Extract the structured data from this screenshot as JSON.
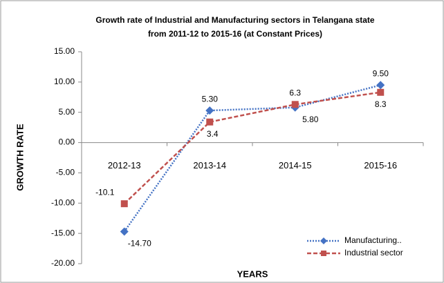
{
  "chart_data": {
    "type": "line",
    "title": [
      "Growth rate of Industrial  and Manufacturing sectors in Telangana state",
      "from 2011-12 to 2015-16 (at Constant Prices)"
    ],
    "x_label": "YEARS",
    "y_label": "GROWTH RATE",
    "categories": [
      "2012-13",
      "2013-14",
      "2014-15",
      "2015-16"
    ],
    "series": [
      {
        "name": "Manufacturing..",
        "color": "#4472c4",
        "values": [
          -14.7,
          5.3,
          5.8,
          9.5
        ],
        "value_labels": [
          "-14.70",
          "5.30",
          "5.80",
          "9.50"
        ]
      },
      {
        "name": "Industrial sector",
        "color": "#c0504d",
        "values": [
          -10.1,
          3.4,
          6.3,
          8.3
        ]
      }
    ],
    "ylim": [
      -20,
      15
    ],
    "yticks": [
      {
        "value": -20,
        "label": "-20.00"
      },
      {
        "value": -15,
        "label": "-15.00"
      },
      {
        "value": -10,
        "label": "-10.00"
      },
      {
        "value": -5,
        "label": "-5.00"
      },
      {
        "value": 0,
        "label": "0.00"
      },
      {
        "value": 5,
        "label": "5.00"
      },
      {
        "value": 10,
        "label": "10.00"
      },
      {
        "value": 15,
        "label": "15.00"
      }
    ],
    "grid": false,
    "legend": "bottom-right"
  }
}
